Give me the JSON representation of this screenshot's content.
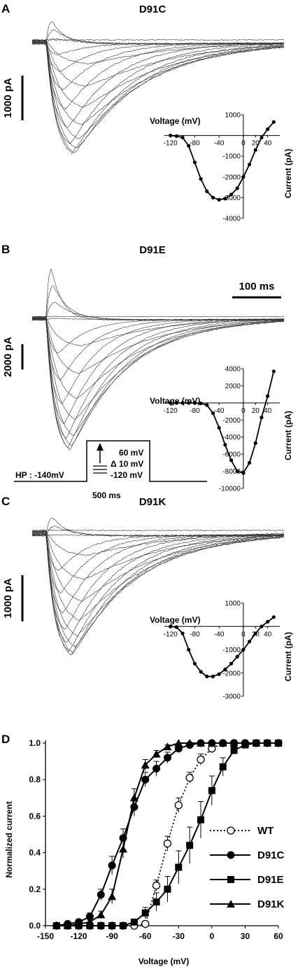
{
  "panel_labels": [
    "A",
    "B",
    "C",
    "D"
  ],
  "titles": [
    "D91C",
    "D91E",
    "D91K"
  ],
  "scalebars": {
    "a": "1000 pA",
    "b": "2000 pA",
    "b_time": "100 ms",
    "c": "1000 pA"
  },
  "protocol": {
    "hp": "HP : -140mV",
    "top": "60 mV",
    "step": "Δ 10 mV",
    "bottom": "-120 mV",
    "duration": "500 ms"
  },
  "legend": [
    "WT",
    "D91C",
    "D91E",
    "D91K"
  ],
  "chart_data": [
    {
      "panel": "A",
      "type": "line",
      "xlabel": "Voltage (mV)",
      "ylabel": "Current (pA)",
      "xlim": [
        -130,
        60
      ],
      "ylim": [
        -4000,
        1000
      ],
      "x_ticks": [
        "-120",
        "-80",
        "-40",
        "0",
        "20",
        "40"
      ],
      "y_ticks": [
        "1000",
        "-1000",
        "-2000",
        "-3000",
        "-4000"
      ],
      "x": [
        -120,
        -110,
        -100,
        -90,
        -80,
        -70,
        -60,
        -50,
        -40,
        -30,
        -20,
        -10,
        0,
        10,
        20,
        30,
        40,
        50
      ],
      "y": [
        0,
        -30,
        -100,
        -500,
        -1300,
        -2100,
        -2700,
        -3000,
        -3100,
        -3050,
        -2850,
        -2550,
        -2000,
        -1400,
        -700,
        -100,
        300,
        650
      ]
    },
    {
      "panel": "B",
      "type": "line",
      "xlabel": "Voltage (mV)",
      "ylabel": "Current (pA)",
      "xlim": [
        -130,
        60
      ],
      "ylim": [
        -10000,
        4000
      ],
      "x_ticks": [
        "-120",
        "-80",
        "-40",
        "0",
        "20",
        "40"
      ],
      "y_ticks": [
        "4000",
        "2000",
        "-2000",
        "-4000",
        "-6000",
        "-8000",
        "-10000"
      ],
      "x": [
        -120,
        -110,
        -100,
        -90,
        -80,
        -70,
        -60,
        -50,
        -40,
        -30,
        -20,
        -10,
        0,
        10,
        20,
        30,
        40,
        50
      ],
      "y": [
        0,
        0,
        0,
        0,
        0,
        -50,
        -250,
        -1200,
        -2900,
        -4900,
        -6700,
        -8000,
        -8200,
        -7000,
        -4700,
        -1700,
        800,
        3700
      ]
    },
    {
      "panel": "C",
      "type": "line",
      "xlabel": "Voltage (mV)",
      "ylabel": "Current (pA)",
      "xlim": [
        -130,
        60
      ],
      "ylim": [
        -3000,
        1000
      ],
      "x_ticks": [
        "-120",
        "-80",
        "-40",
        "0",
        "20",
        "40"
      ],
      "y_ticks": [
        "1000",
        "-1000",
        "-2000",
        "-3000"
      ],
      "x": [
        -120,
        -110,
        -100,
        -90,
        -80,
        -70,
        -60,
        -50,
        -40,
        -30,
        -20,
        -10,
        0,
        10,
        20,
        30,
        40,
        50
      ],
      "y": [
        0,
        -30,
        -300,
        -1000,
        -1600,
        -1950,
        -2150,
        -2150,
        -2050,
        -1850,
        -1600,
        -1300,
        -1000,
        -650,
        -300,
        0,
        200,
        400
      ]
    },
    {
      "panel": "D",
      "type": "line",
      "xlabel": "Voltage (mV)",
      "ylabel": "Normalized current",
      "xlim": [
        -150,
        60
      ],
      "ylim": [
        0,
        1.0
      ],
      "x_ticks": [
        "-150",
        "-120",
        "-90",
        "-60",
        "-30",
        "0",
        "30",
        "60"
      ],
      "y_ticks": [
        "0.0",
        "0.2",
        "0.4",
        "0.6",
        "0.8",
        "1.0"
      ],
      "series": [
        {
          "name": "WT",
          "style": "dotted",
          "marker": "open-circle",
          "x": [
            -140,
            -130,
            -120,
            -110,
            -100,
            -90,
            -80,
            -70,
            -60,
            -50,
            -40,
            -30,
            -20,
            -10,
            0,
            10,
            20,
            30,
            40,
            50,
            60
          ],
          "y": [
            0,
            0,
            0,
            0,
            0,
            0,
            0,
            0,
            0.01,
            0.22,
            0.45,
            0.66,
            0.81,
            0.91,
            0.97,
            1.0,
            1.0,
            1.0,
            1.0,
            1.0,
            1.0
          ],
          "err": [
            0,
            0,
            0,
            0,
            0,
            0,
            0,
            0,
            0.01,
            0.03,
            0.04,
            0.04,
            0.03,
            0.03,
            0.02,
            0.01,
            0,
            0,
            0,
            0,
            0
          ]
        },
        {
          "name": "D91C",
          "style": "solid",
          "marker": "filled-circle",
          "x": [
            -140,
            -130,
            -120,
            -110,
            -100,
            -90,
            -80,
            -70,
            -60,
            -50,
            -40,
            -30,
            -20,
            -10,
            0,
            10,
            20,
            30,
            40,
            50,
            60
          ],
          "y": [
            0,
            0.01,
            0.02,
            0.05,
            0.17,
            0.33,
            0.48,
            0.65,
            0.8,
            0.86,
            0.92,
            0.97,
            0.99,
            1.0,
            1.0,
            1.0,
            1.0,
            1.0,
            1.0,
            1.0,
            1.0
          ],
          "err": [
            0,
            0,
            0.01,
            0.02,
            0.03,
            0.05,
            0.05,
            0.05,
            0.04,
            0.04,
            0.03,
            0.02,
            0.01,
            0,
            0,
            0,
            0,
            0,
            0,
            0,
            0
          ]
        },
        {
          "name": "D91E",
          "style": "solid",
          "marker": "filled-square",
          "x": [
            -140,
            -130,
            -120,
            -110,
            -100,
            -90,
            -80,
            -70,
            -60,
            -50,
            -40,
            -30,
            -20,
            -10,
            0,
            10,
            20,
            30,
            40,
            50,
            60
          ],
          "y": [
            0,
            0,
            0,
            0,
            0,
            0,
            0,
            0.02,
            0.07,
            0.13,
            0.2,
            0.32,
            0.44,
            0.58,
            0.74,
            0.87,
            0.96,
            0.99,
            1.0,
            1.0,
            1.0
          ],
          "err": [
            0,
            0,
            0,
            0,
            0,
            0,
            0,
            0.01,
            0.03,
            0.05,
            0.07,
            0.09,
            0.1,
            0.1,
            0.08,
            0.05,
            0.02,
            0.01,
            0,
            0,
            0
          ]
        },
        {
          "name": "D91K",
          "style": "solid",
          "marker": "filled-triangle",
          "x": [
            -140,
            -130,
            -120,
            -110,
            -100,
            -90,
            -80,
            -70,
            -60,
            -50,
            -40,
            -30,
            -20,
            -10,
            0,
            10,
            20,
            30,
            40,
            50,
            60
          ],
          "y": [
            0,
            0,
            0.01,
            0.02,
            0.06,
            0.16,
            0.42,
            0.7,
            0.88,
            0.94,
            0.98,
            1.0,
            1.0,
            1.0,
            1.0,
            1.0,
            1.0,
            1.0,
            1.0,
            1.0,
            1.0
          ],
          "err": [
            0,
            0,
            0,
            0.01,
            0.02,
            0.04,
            0.05,
            0.05,
            0.03,
            0.02,
            0.01,
            0,
            0,
            0,
            0,
            0,
            0,
            0,
            0,
            0,
            0
          ]
        }
      ]
    }
  ]
}
